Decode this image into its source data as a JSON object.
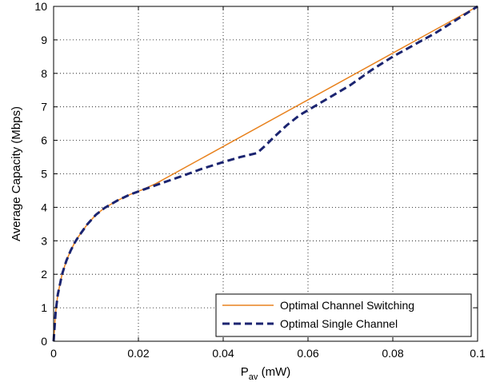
{
  "chart_data": {
    "type": "line",
    "title": "",
    "xlabel": "P",
    "xlabel_sub": "av",
    "xlabel_unit": " (mW)",
    "ylabel": "Average Capacity (Mbps)",
    "xlim": [
      0,
      0.1
    ],
    "ylim": [
      0,
      10
    ],
    "grid": true,
    "legend_position": "bottom-right",
    "x_ticks": [
      0,
      0.02,
      0.04,
      0.06,
      0.08,
      0.1
    ],
    "x_tick_labels": [
      "0",
      "0.02",
      "0.04",
      "0.06",
      "0.08",
      "0.1"
    ],
    "y_ticks": [
      0,
      1,
      2,
      3,
      4,
      5,
      6,
      7,
      8,
      9,
      10
    ],
    "y_tick_labels": [
      "0",
      "1",
      "2",
      "3",
      "4",
      "5",
      "6",
      "7",
      "8",
      "9",
      "10"
    ],
    "series": [
      {
        "name": "Optimal Channel Switching",
        "color": "#e8821e",
        "style": "solid",
        "x": [
          0,
          0.0005,
          0.001,
          0.002,
          0.003,
          0.004,
          0.005,
          0.006,
          0.008,
          0.01,
          0.012,
          0.015,
          0.018,
          0.021,
          0.024,
          0.1
        ],
        "y": [
          0,
          0.9,
          1.4,
          2.0,
          2.4,
          2.7,
          2.95,
          3.15,
          3.5,
          3.78,
          3.98,
          4.2,
          4.38,
          4.53,
          4.7,
          10
        ]
      },
      {
        "name": "Optimal Single Channel",
        "color": "#1b2470",
        "style": "dashed",
        "x": [
          0,
          0.0005,
          0.001,
          0.002,
          0.003,
          0.004,
          0.005,
          0.006,
          0.008,
          0.01,
          0.012,
          0.015,
          0.018,
          0.021,
          0.025,
          0.03,
          0.035,
          0.04,
          0.044,
          0.048,
          0.05,
          0.052,
          0.055,
          0.058,
          0.062,
          0.066,
          0.07,
          0.075,
          0.08,
          0.085,
          0.09,
          0.095,
          0.1
        ],
        "y": [
          0,
          0.9,
          1.4,
          2.0,
          2.4,
          2.7,
          2.95,
          3.15,
          3.5,
          3.78,
          3.98,
          4.2,
          4.38,
          4.52,
          4.7,
          4.92,
          5.15,
          5.35,
          5.5,
          5.62,
          5.85,
          6.1,
          6.45,
          6.75,
          7.05,
          7.35,
          7.65,
          8.1,
          8.5,
          8.85,
          9.2,
          9.6,
          10
        ]
      }
    ]
  }
}
